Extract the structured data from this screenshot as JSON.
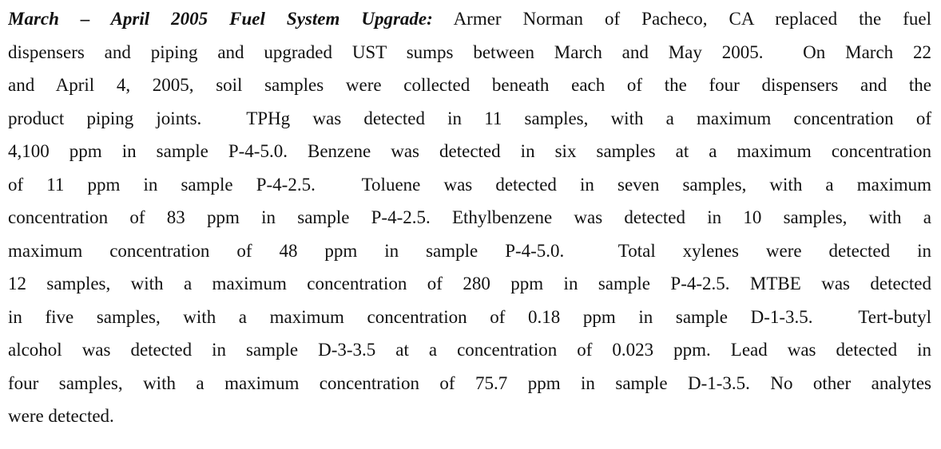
{
  "paragraph": {
    "heading": "March – April 2005 Fuel System Upgrade:",
    "lines": [
      "Armer Norman of Pacheco, CA replaced the fuel",
      "dispensers and piping and upgraded UST sumps between March and May 2005.  On March 22",
      "and April 4, 2005, soil samples were collected beneath each of the four dispensers and the",
      "product piping joints.  TPHg was detected in 11 samples, with a maximum concentration of",
      "4,100 ppm in sample P-4-5.0. Benzene was detected in six samples at a maximum concentration",
      "of 11 ppm in sample P-4-2.5.  Toluene was detected in seven samples, with a maximum",
      "concentration of 83 ppm in sample P-4-2.5. Ethylbenzene was detected in 10 samples, with a",
      "maximum concentration of 48 ppm in sample P-4-5.0.  Total xylenes were detected in",
      "12 samples, with a maximum concentration of 280 ppm in sample P-4-2.5. MTBE was detected",
      "in five samples, with a maximum concentration of 0.18 ppm in sample D-1-3.5.  Tert-butyl",
      "alcohol was detected in sample D-3-3.5 at a concentration of 0.023 ppm. Lead was detected in",
      "four samples, with a maximum concentration of 75.7 ppm in sample D-1-3.5. No other analytes",
      "were detected."
    ]
  }
}
